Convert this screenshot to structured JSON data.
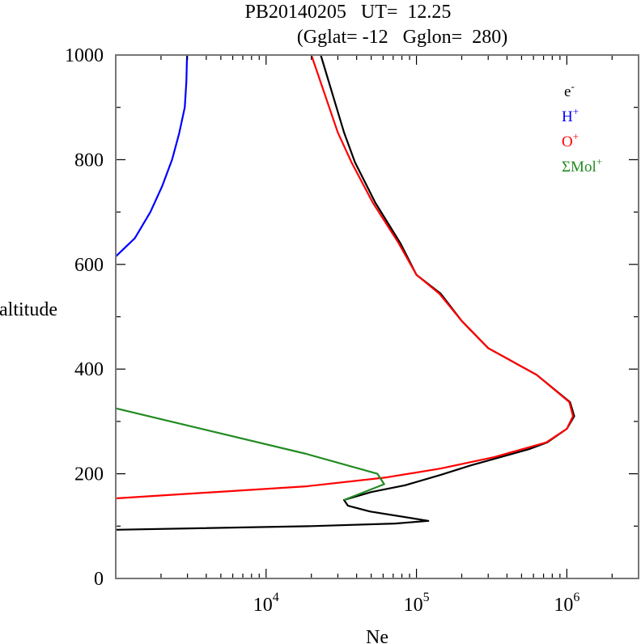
{
  "chart_data": {
    "type": "line",
    "title_line1": "PB20140205   UT=  12.25",
    "title_line2": "(Gglat= -12   Gglon=  280)",
    "xlabel": "Ne",
    "ylabel": "altitude",
    "xscale": "log",
    "xlim": [
      1000,
      3000000
    ],
    "ylim": [
      0,
      1000
    ],
    "x_ticks": [
      {
        "base": "10",
        "exp": "4",
        "value": 10000
      },
      {
        "base": "10",
        "exp": "5",
        "value": 100000
      },
      {
        "base": "10",
        "exp": "6",
        "value": 1000000
      }
    ],
    "y_ticks": [
      "0",
      "200",
      "400",
      "600",
      "800",
      "1000"
    ],
    "y_tick_values": [
      0,
      200,
      400,
      600,
      800,
      1000
    ],
    "y_minor_step": 100,
    "grid": false,
    "legend_position": "top-right",
    "series": [
      {
        "name": "e-",
        "label_base": "e",
        "label_sup": "-",
        "color": "#000000",
        "points": [
          [
            1000,
            93
          ],
          [
            20000,
            100
          ],
          [
            72000,
            105
          ],
          [
            120000,
            110
          ],
          [
            49000,
            128
          ],
          [
            35000,
            139
          ],
          [
            33000,
            150
          ],
          [
            50000,
            165
          ],
          [
            84000,
            178
          ],
          [
            145000,
            198
          ],
          [
            230000,
            216
          ],
          [
            560000,
            247
          ],
          [
            740000,
            260
          ],
          [
            1000000,
            286
          ],
          [
            1120000,
            310
          ],
          [
            1050000,
            337
          ],
          [
            630000,
            389
          ],
          [
            300000,
            440
          ],
          [
            200000,
            492
          ],
          [
            145000,
            544
          ],
          [
            100000,
            580
          ],
          [
            78000,
            641
          ],
          [
            53000,
            719
          ],
          [
            39000,
            795
          ],
          [
            33000,
            852
          ],
          [
            23100,
            1000
          ]
        ]
      },
      {
        "name": "H+",
        "label_base": "H",
        "label_sup": "+",
        "color": "#0000ff",
        "points": [
          [
            1000,
            615
          ],
          [
            1340,
            650
          ],
          [
            1700,
            700
          ],
          [
            2040,
            750
          ],
          [
            2370,
            800
          ],
          [
            2640,
            850
          ],
          [
            2880,
            900
          ],
          [
            2950,
            950
          ],
          [
            2980,
            1000
          ]
        ]
      },
      {
        "name": "O+",
        "label_base": "O",
        "label_sup": "+",
        "color": "#ff0000",
        "points": [
          [
            1000,
            153
          ],
          [
            18500,
            176
          ],
          [
            63000,
            193
          ],
          [
            145000,
            210
          ],
          [
            330000,
            232
          ],
          [
            730000,
            260
          ],
          [
            1000000,
            286
          ],
          [
            1100000,
            310
          ],
          [
            1040000,
            337
          ],
          [
            630000,
            389
          ],
          [
            300000,
            440
          ],
          [
            200000,
            492
          ],
          [
            142000,
            544
          ],
          [
            100000,
            580
          ],
          [
            76000,
            641
          ],
          [
            51000,
            719
          ],
          [
            37000,
            795
          ],
          [
            30000,
            852
          ],
          [
            20000,
            1000
          ]
        ]
      },
      {
        "name": "ΣMol+",
        "label_base": "ΣMol",
        "label_sup": "+",
        "color": "#228b22",
        "points": [
          [
            1000,
            325
          ],
          [
            18500,
            238
          ],
          [
            55000,
            200
          ],
          [
            61000,
            180
          ],
          [
            33000,
            150
          ]
        ]
      }
    ]
  },
  "colors": {
    "frame": "#777777",
    "ticks": "#000000"
  }
}
